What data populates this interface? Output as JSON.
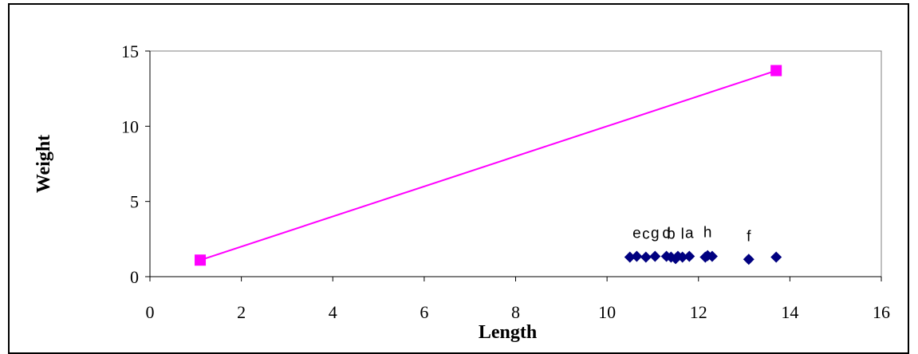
{
  "chart_data": {
    "type": "scatter",
    "title": "",
    "xlabel": "Length",
    "ylabel": "Weight",
    "xlim": [
      0,
      16
    ],
    "ylim": [
      0,
      15
    ],
    "xticks": [
      0,
      2,
      4,
      6,
      8,
      10,
      12,
      14,
      16
    ],
    "yticks": [
      0,
      5,
      10,
      15
    ],
    "grid": false,
    "legend": "none",
    "series": [
      {
        "kind": "line",
        "color": "#ff00ff",
        "marker": "square",
        "points": [
          {
            "x": 1.1,
            "y": 1.1
          },
          {
            "x": 13.7,
            "y": 13.7
          }
        ]
      },
      {
        "kind": "scatter",
        "color": "#000080",
        "marker": "diamond",
        "points": [
          {
            "x": 10.5,
            "y": 1.3,
            "label": ""
          },
          {
            "x": 10.65,
            "y": 1.35,
            "label": "e"
          },
          {
            "x": 10.85,
            "y": 1.3,
            "label": "c"
          },
          {
            "x": 11.05,
            "y": 1.35,
            "label": "g"
          },
          {
            "x": 11.3,
            "y": 1.35,
            "label": "d"
          },
          {
            "x": 11.4,
            "y": 1.3,
            "label": "b"
          },
          {
            "x": 11.5,
            "y": 1.2,
            "label": ""
          },
          {
            "x": 11.55,
            "y": 1.35,
            "label": ""
          },
          {
            "x": 11.65,
            "y": 1.3,
            "label": "l"
          },
          {
            "x": 11.8,
            "y": 1.35,
            "label": "a"
          },
          {
            "x": 12.15,
            "y": 1.3,
            "label": ""
          },
          {
            "x": 12.2,
            "y": 1.4,
            "label": "h"
          },
          {
            "x": 12.3,
            "y": 1.35,
            "label": ""
          },
          {
            "x": 13.1,
            "y": 1.15,
            "label": "f"
          },
          {
            "x": 13.7,
            "y": 1.3,
            "label": ""
          }
        ]
      }
    ]
  }
}
